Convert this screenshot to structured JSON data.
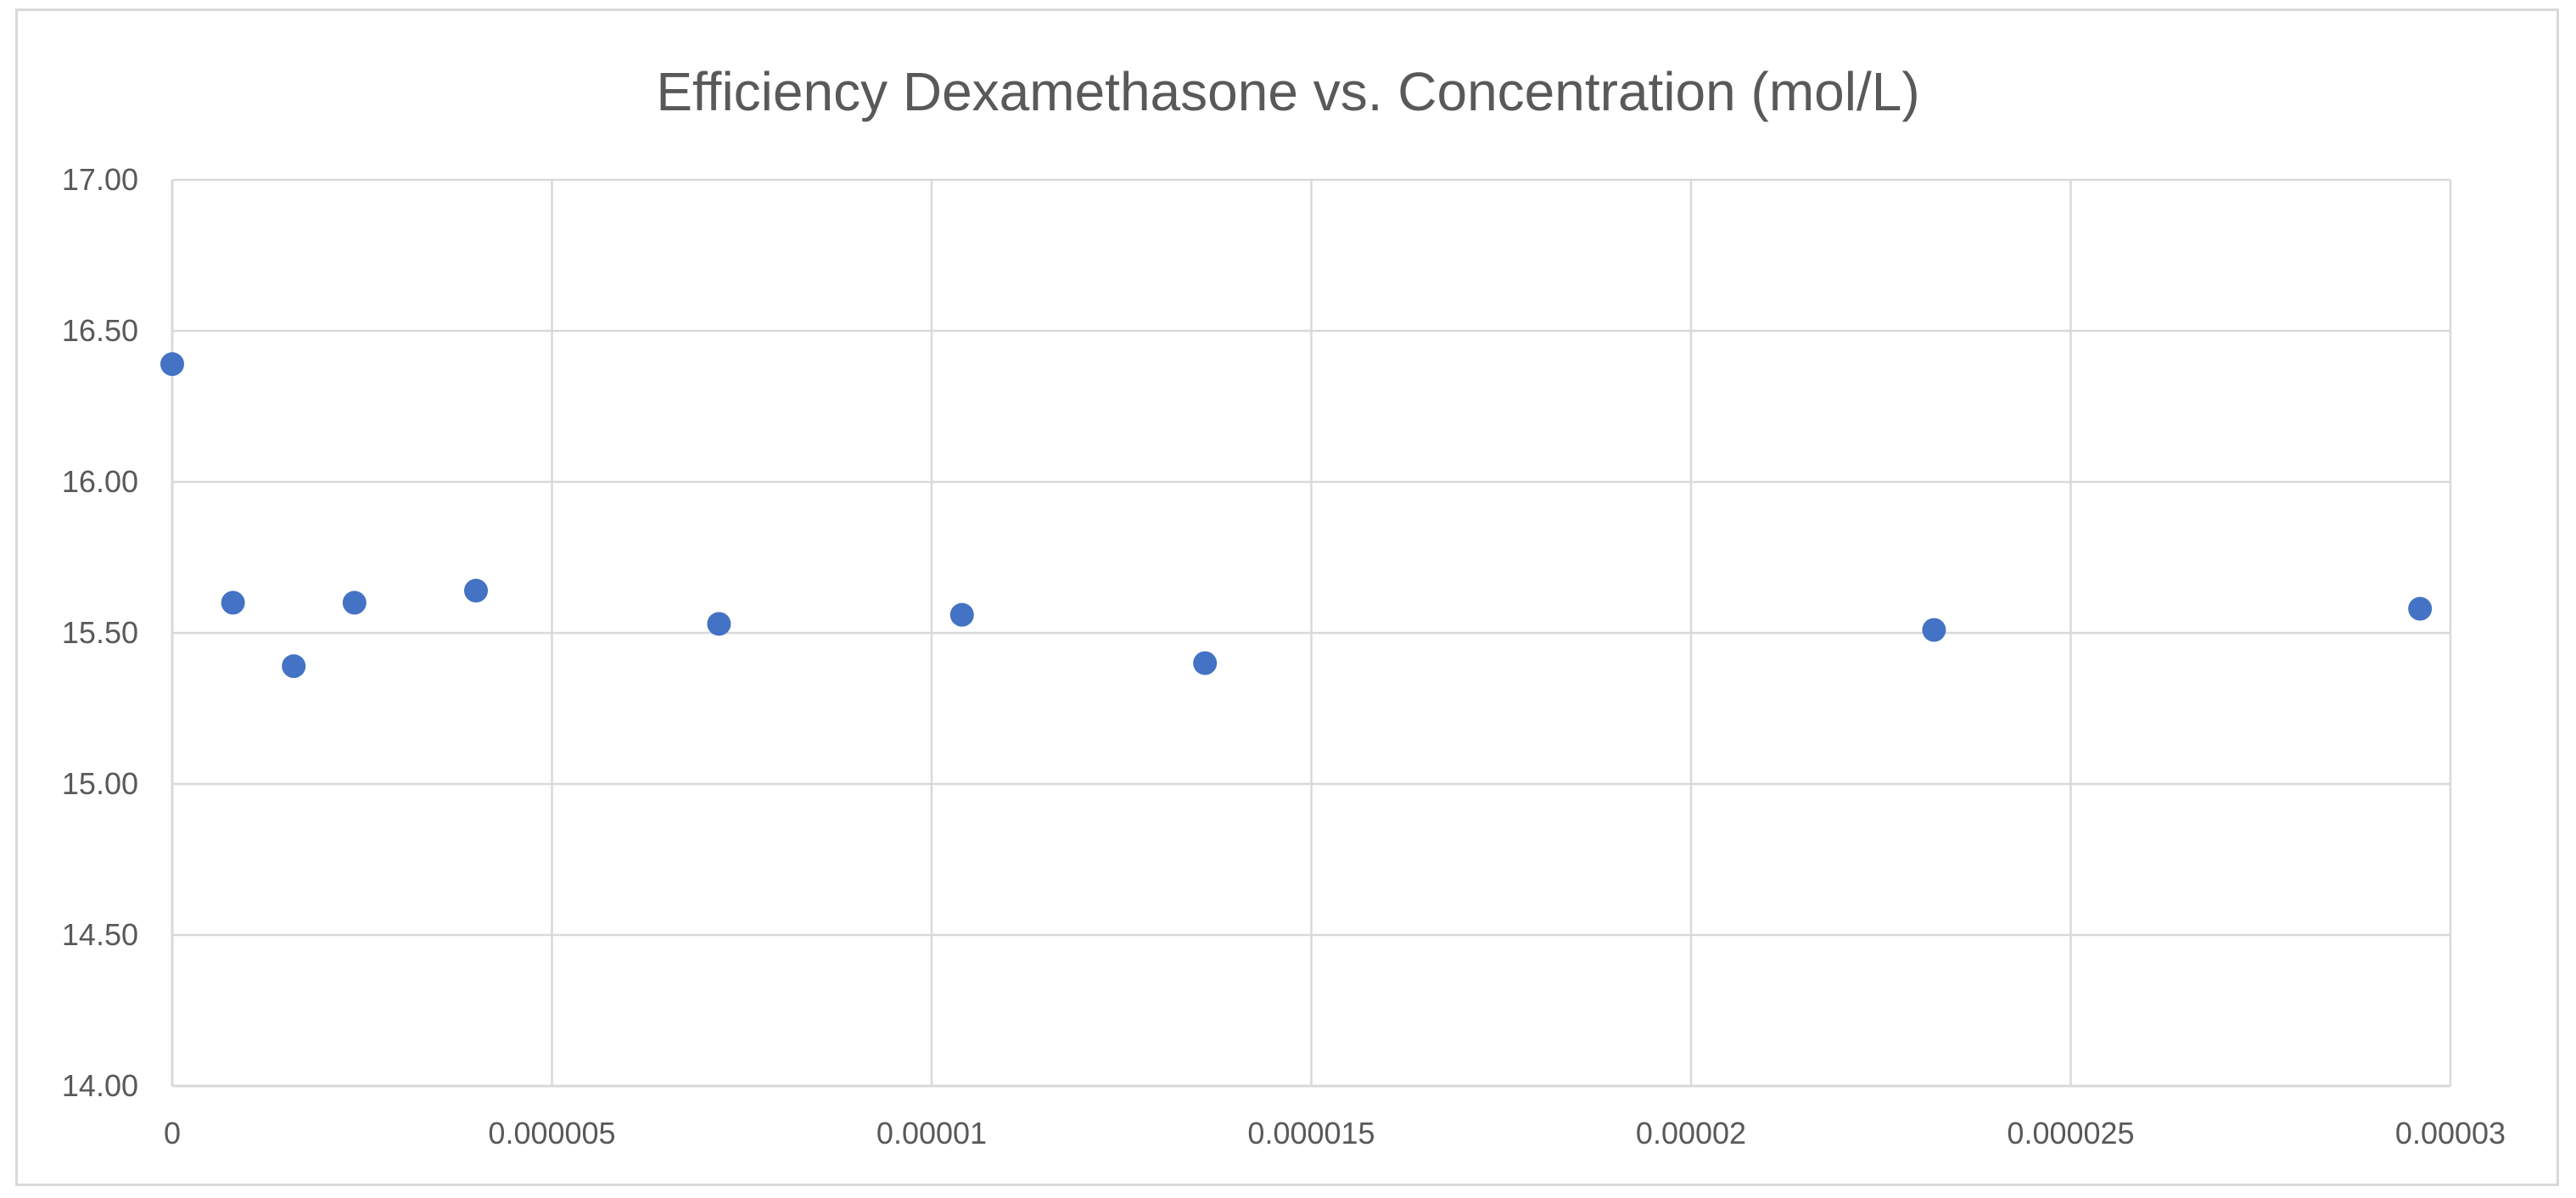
{
  "chart_data": {
    "type": "scatter",
    "title": "Efficiency Dexamethasone vs. Concentration (mol/L)",
    "xlabel": "",
    "ylabel": "",
    "xlim": [
      0,
      3e-05
    ],
    "ylim": [
      14.0,
      17.0
    ],
    "x_ticks": [
      "0",
      "0.000005",
      "0.00001",
      "0.000015",
      "0.00002",
      "0.000025",
      "0.00003"
    ],
    "y_ticks": [
      "14.00",
      "14.50",
      "15.00",
      "15.50",
      "16.00",
      "16.50",
      "17.00"
    ],
    "x_tick_values": [
      0,
      5e-06,
      1e-05,
      1.5e-05,
      2e-05,
      2.5e-05,
      3e-05
    ],
    "y_tick_values": [
      14.0,
      14.5,
      15.0,
      15.5,
      16.0,
      16.5,
      17.0
    ],
    "grid": true,
    "legend": "none",
    "marker_color": "#4472c4",
    "series": [
      {
        "points": [
          {
            "x": 0,
            "y": 16.39
          },
          {
            "x": 8e-07,
            "y": 15.6
          },
          {
            "x": 1.6e-06,
            "y": 15.39
          },
          {
            "x": 2.4e-06,
            "y": 15.6
          },
          {
            "x": 4e-06,
            "y": 15.64
          },
          {
            "x": 7.2e-06,
            "y": 15.53
          },
          {
            "x": 1.04e-05,
            "y": 15.56
          },
          {
            "x": 1.36e-05,
            "y": 15.4
          },
          {
            "x": 2.32e-05,
            "y": 15.51
          },
          {
            "x": 2.96e-05,
            "y": 15.58
          }
        ]
      }
    ]
  }
}
